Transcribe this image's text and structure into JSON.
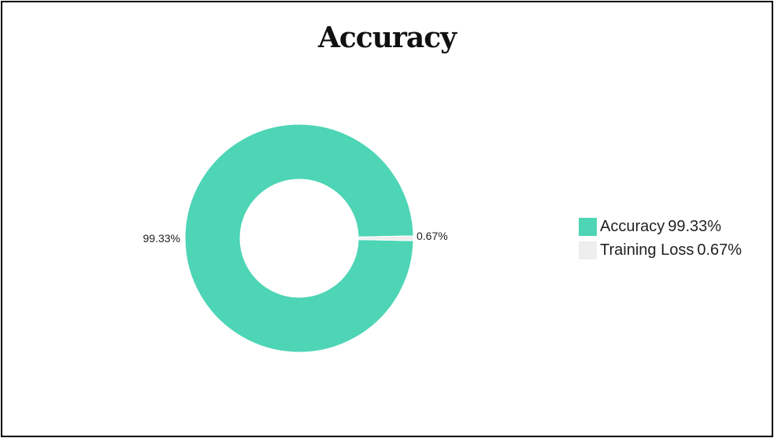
{
  "chart_data": {
    "type": "pie",
    "title": "Accuracy",
    "categories": [
      "Accuracy",
      "Training Loss"
    ],
    "values": [
      99.33,
      0.67
    ],
    "value_labels": [
      "99.33%",
      "0.67%"
    ],
    "colors": [
      "#4dd5b5",
      "#eeeeee"
    ],
    "donut": true,
    "legend_position": "right"
  }
}
